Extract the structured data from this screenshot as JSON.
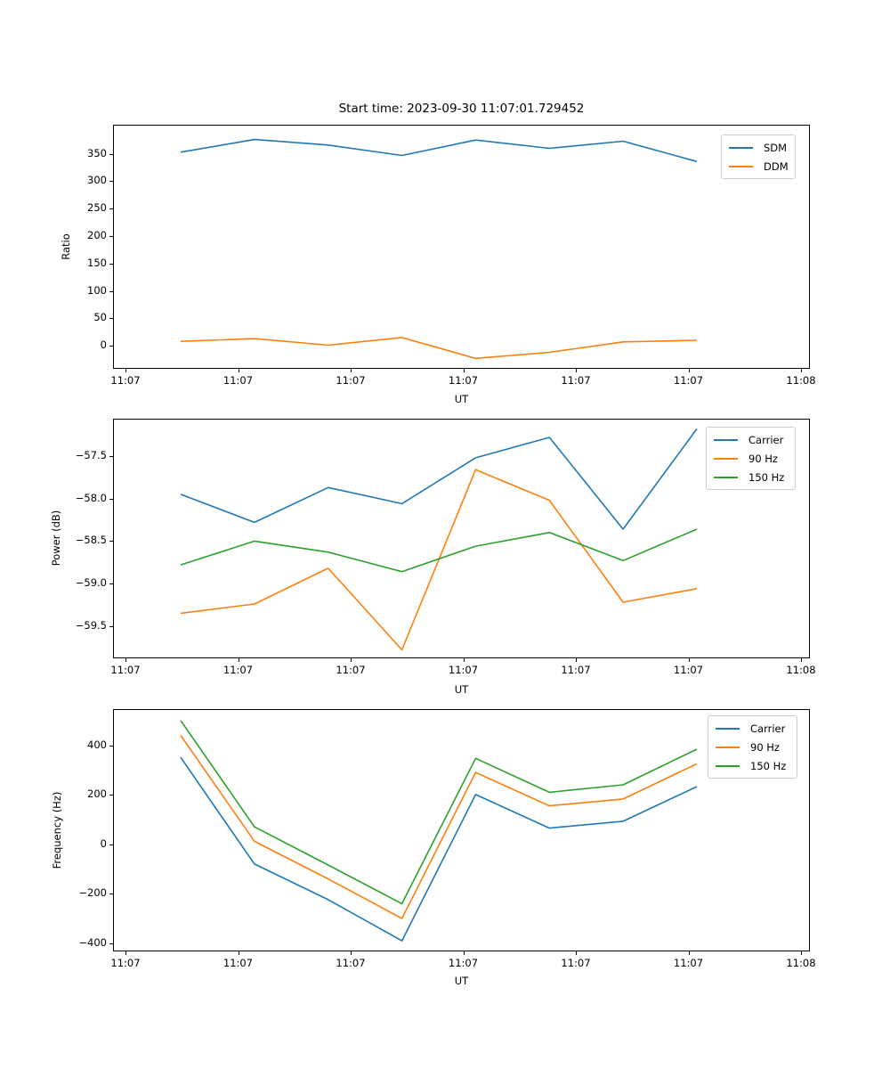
{
  "figure": {
    "title": "Start time: 2023-09-30 11:07:01.729452",
    "background": "#ffffff"
  },
  "palette": {
    "blue": "#1f77b4",
    "orange": "#ff7f0e",
    "green": "#2ca02c"
  },
  "x_axis": {
    "label": "UT",
    "xlim_seconds": [
      -1.11,
      60.79
    ],
    "ticks": [
      {
        "sec": 0,
        "label": "11:07"
      },
      {
        "sec": 10,
        "label": "11:07"
      },
      {
        "sec": 20,
        "label": "11:07"
      },
      {
        "sec": 30,
        "label": "11:07"
      },
      {
        "sec": 40,
        "label": "11:07"
      },
      {
        "sec": 50,
        "label": "11:07"
      },
      {
        "sec": 60,
        "label": "11:08"
      }
    ]
  },
  "chart_data": [
    {
      "type": "line",
      "title": "Start time: 2023-09-30 11:07:01.729452",
      "xlabel": "UT",
      "ylabel": "Ratio",
      "ylim": [
        -42,
        403
      ],
      "grid": false,
      "legend_position": "upper right",
      "yticks": [
        {
          "v": 0,
          "label": "0"
        },
        {
          "v": 50,
          "label": "50"
        },
        {
          "v": 100,
          "label": "100"
        },
        {
          "v": 150,
          "label": "150"
        },
        {
          "v": 200,
          "label": "200"
        },
        {
          "v": 250,
          "label": "250"
        },
        {
          "v": 300,
          "label": "300"
        },
        {
          "v": 350,
          "label": "350"
        }
      ],
      "x_seconds": [
        4.9,
        11.45,
        18.0,
        24.55,
        31.1,
        37.65,
        44.2,
        50.75
      ],
      "series": [
        {
          "name": "SDM",
          "color": "#1f77b4",
          "values": [
            353,
            376,
            366,
            347,
            375,
            360,
            373,
            336
          ]
        },
        {
          "name": "DDM",
          "color": "#ff7f0e",
          "values": [
            8,
            13,
            1,
            15,
            -23,
            -12,
            7,
            10
          ]
        }
      ]
    },
    {
      "type": "line",
      "xlabel": "UT",
      "ylabel": "Power (dB)",
      "ylim": [
        -59.88,
        -57.06
      ],
      "grid": false,
      "legend_position": "upper right",
      "yticks": [
        {
          "v": -57.5,
          "label": "−57.5"
        },
        {
          "v": -58.0,
          "label": "−58.0"
        },
        {
          "v": -58.5,
          "label": "−58.5"
        },
        {
          "v": -59.0,
          "label": "−59.0"
        },
        {
          "v": -59.5,
          "label": "−59.5"
        }
      ],
      "x_seconds": [
        4.9,
        11.45,
        18.0,
        24.55,
        31.1,
        37.65,
        44.2,
        50.75
      ],
      "series": [
        {
          "name": "Carrier",
          "color": "#1f77b4",
          "values": [
            -57.95,
            -58.28,
            -57.87,
            -58.06,
            -57.52,
            -57.28,
            -58.36,
            -57.18
          ]
        },
        {
          "name": "90 Hz",
          "color": "#ff7f0e",
          "values": [
            -59.35,
            -59.24,
            -58.82,
            -59.78,
            -57.66,
            -58.02,
            -59.22,
            -59.06
          ]
        },
        {
          "name": "150 Hz",
          "color": "#2ca02c",
          "values": [
            -58.78,
            -58.5,
            -58.63,
            -58.86,
            -58.56,
            -58.4,
            -58.73,
            -58.36
          ]
        }
      ]
    },
    {
      "type": "line",
      "xlabel": "UT",
      "ylabel": "Frequency (Hz)",
      "ylim": [
        -433,
        546
      ],
      "grid": false,
      "legend_position": "upper right",
      "yticks": [
        {
          "v": 400,
          "label": "400"
        },
        {
          "v": 200,
          "label": "200"
        },
        {
          "v": 0,
          "label": "0"
        },
        {
          "v": -200,
          "label": "−200"
        },
        {
          "v": -400,
          "label": "−400"
        }
      ],
      "x_seconds": [
        4.9,
        11.45,
        18.0,
        24.55,
        31.1,
        37.65,
        44.2,
        50.75
      ],
      "series": [
        {
          "name": "Carrier",
          "color": "#1f77b4",
          "values": [
            351,
            -80,
            -224,
            -390,
            201,
            65,
            93,
            233
          ]
        },
        {
          "name": "90 Hz",
          "color": "#ff7f0e",
          "values": [
            440,
            12,
            -140,
            -300,
            290,
            155,
            183,
            325
          ]
        },
        {
          "name": "150 Hz",
          "color": "#2ca02c",
          "values": [
            500,
            70,
            -84,
            -240,
            347,
            210,
            240,
            384
          ]
        }
      ]
    }
  ]
}
